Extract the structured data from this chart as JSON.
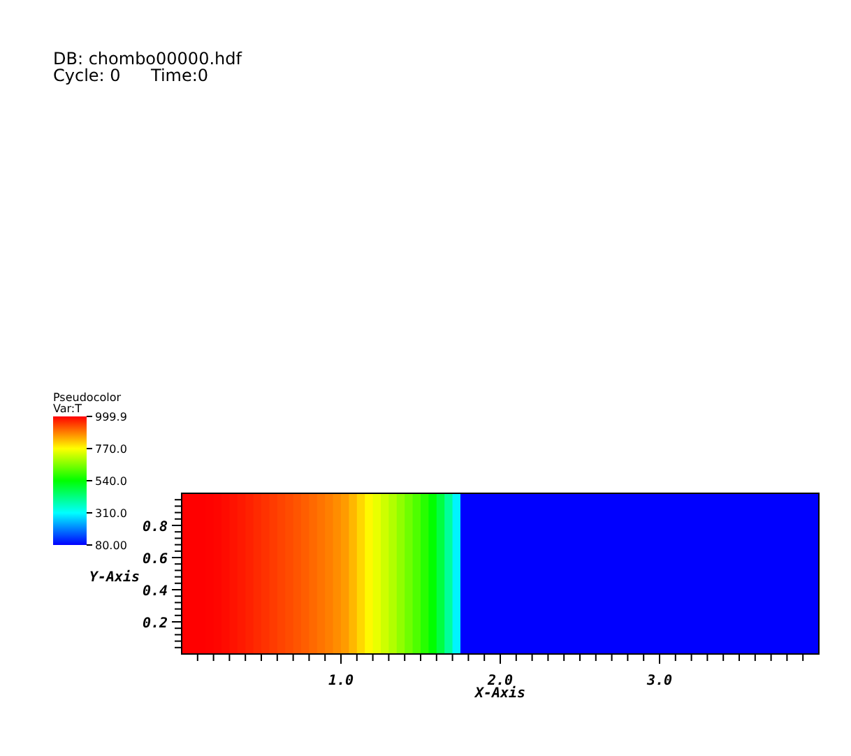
{
  "chart_data": {
    "type": "heatmap",
    "title": "DB: chombo00000.hdf",
    "annotations": [
      "Cycle: 0",
      "Time:0",
      "Pseudocolor"
    ],
    "clabel": "Var:T",
    "xlabel": "X-Axis",
    "ylabel": "Y-Axis",
    "x": [
      0.025,
      0.075,
      0.125,
      0.175,
      0.225,
      0.275,
      0.325,
      0.375,
      0.425,
      0.475,
      0.525,
      0.575,
      0.625,
      0.675,
      0.725,
      0.775,
      0.825,
      0.875,
      0.925,
      0.975,
      1.025,
      1.075,
      1.125,
      1.175,
      1.225,
      1.275,
      1.325,
      1.375,
      1.425,
      1.475,
      1.525,
      1.575,
      1.625,
      1.675,
      1.725,
      1.775,
      1.825,
      1.875,
      1.925,
      1.975,
      2.025,
      2.075,
      2.125,
      2.175,
      2.225,
      2.275,
      2.325,
      2.375,
      2.425,
      2.475,
      2.525,
      2.575,
      2.625,
      2.675,
      2.725,
      2.775,
      2.825,
      2.875,
      2.925,
      2.975,
      3.025,
      3.075,
      3.125,
      3.175,
      3.225,
      3.275,
      3.325,
      3.375,
      3.425,
      3.475,
      3.525,
      3.575,
      3.625,
      3.675,
      3.725,
      3.775,
      3.825,
      3.875,
      3.925,
      3.975
    ],
    "cells": [
      [
        999.9,
        999.9,
        999.9,
        998,
        995,
        990,
        984,
        977,
        970,
        962,
        955,
        947,
        939,
        931,
        923,
        915,
        905,
        895,
        885,
        873,
        860,
        835,
        805,
        775,
        750,
        725,
        700,
        670,
        640,
        610,
        575,
        540,
        480,
        400,
        300,
        80,
        80,
        80,
        80,
        80,
        80,
        80,
        80,
        80,
        80,
        80,
        80,
        80,
        80,
        80,
        80,
        80,
        80,
        80,
        80,
        80,
        80,
        80,
        80,
        80,
        80,
        80,
        80,
        80,
        80,
        80,
        80,
        80,
        80,
        80,
        80,
        80,
        80,
        80,
        80,
        80,
        80,
        80,
        80,
        80
      ]
    ],
    "clim": [
      80,
      999.9
    ],
    "cticks": [
      {
        "value": 80,
        "label": "80.00"
      },
      {
        "value": 310,
        "label": "310.0"
      },
      {
        "value": 540,
        "label": "540.0"
      },
      {
        "value": 770,
        "label": "770.0"
      },
      {
        "value": 999.9,
        "label": "999.9"
      }
    ],
    "xlim": [
      0,
      4
    ],
    "xticks": [
      {
        "value": 0.1,
        "label": null
      },
      {
        "value": 0.2,
        "label": null
      },
      {
        "value": 0.3,
        "label": null
      },
      {
        "value": 0.4,
        "label": null
      },
      {
        "value": 0.5,
        "label": null
      },
      {
        "value": 0.6,
        "label": null
      },
      {
        "value": 0.7,
        "label": null
      },
      {
        "value": 0.8,
        "label": null
      },
      {
        "value": 0.9,
        "label": null
      },
      {
        "value": 1,
        "label": "1.0"
      },
      {
        "value": 1.1,
        "label": null
      },
      {
        "value": 1.2,
        "label": null
      },
      {
        "value": 1.3,
        "label": null
      },
      {
        "value": 1.4,
        "label": null
      },
      {
        "value": 1.5,
        "label": null
      },
      {
        "value": 1.6,
        "label": null
      },
      {
        "value": 1.7,
        "label": null
      },
      {
        "value": 1.8,
        "label": null
      },
      {
        "value": 1.9,
        "label": null
      },
      {
        "value": 2,
        "label": "2.0"
      },
      {
        "value": 2.1,
        "label": null
      },
      {
        "value": 2.2,
        "label": null
      },
      {
        "value": 2.3,
        "label": null
      },
      {
        "value": 2.4,
        "label": null
      },
      {
        "value": 2.5,
        "label": null
      },
      {
        "value": 2.6,
        "label": null
      },
      {
        "value": 2.7,
        "label": null
      },
      {
        "value": 2.8,
        "label": null
      },
      {
        "value": 2.9,
        "label": null
      },
      {
        "value": 3,
        "label": "3.0"
      },
      {
        "value": 3.1,
        "label": null
      },
      {
        "value": 3.2,
        "label": null
      },
      {
        "value": 3.3,
        "label": null
      },
      {
        "value": 3.4,
        "label": null
      },
      {
        "value": 3.5,
        "label": null
      },
      {
        "value": 3.6,
        "label": null
      },
      {
        "value": 3.7,
        "label": null
      },
      {
        "value": 3.8,
        "label": null
      },
      {
        "value": 3.9,
        "label": null
      }
    ],
    "ylim": [
      0,
      1
    ],
    "yticks": [
      {
        "value": 0.04,
        "label": null
      },
      {
        "value": 0.08,
        "label": null
      },
      {
        "value": 0.12,
        "label": null
      },
      {
        "value": 0.16,
        "label": null
      },
      {
        "value": 0.2,
        "label": "0.2"
      },
      {
        "value": 0.24,
        "label": null
      },
      {
        "value": 0.28,
        "label": null
      },
      {
        "value": 0.32,
        "label": null
      },
      {
        "value": 0.36,
        "label": null
      },
      {
        "value": 0.4,
        "label": "0.4"
      },
      {
        "value": 0.44,
        "label": null
      },
      {
        "value": 0.48,
        "label": null
      },
      {
        "value": 0.52,
        "label": null
      },
      {
        "value": 0.56,
        "label": null
      },
      {
        "value": 0.6,
        "label": "0.6"
      },
      {
        "value": 0.64,
        "label": null
      },
      {
        "value": 0.68,
        "label": null
      },
      {
        "value": 0.72,
        "label": null
      },
      {
        "value": 0.76,
        "label": null
      },
      {
        "value": 0.8,
        "label": "0.8"
      },
      {
        "value": 0.84,
        "label": null
      },
      {
        "value": 0.88,
        "label": null
      },
      {
        "value": 0.92,
        "label": null
      },
      {
        "value": 0.96,
        "label": null
      }
    ]
  }
}
